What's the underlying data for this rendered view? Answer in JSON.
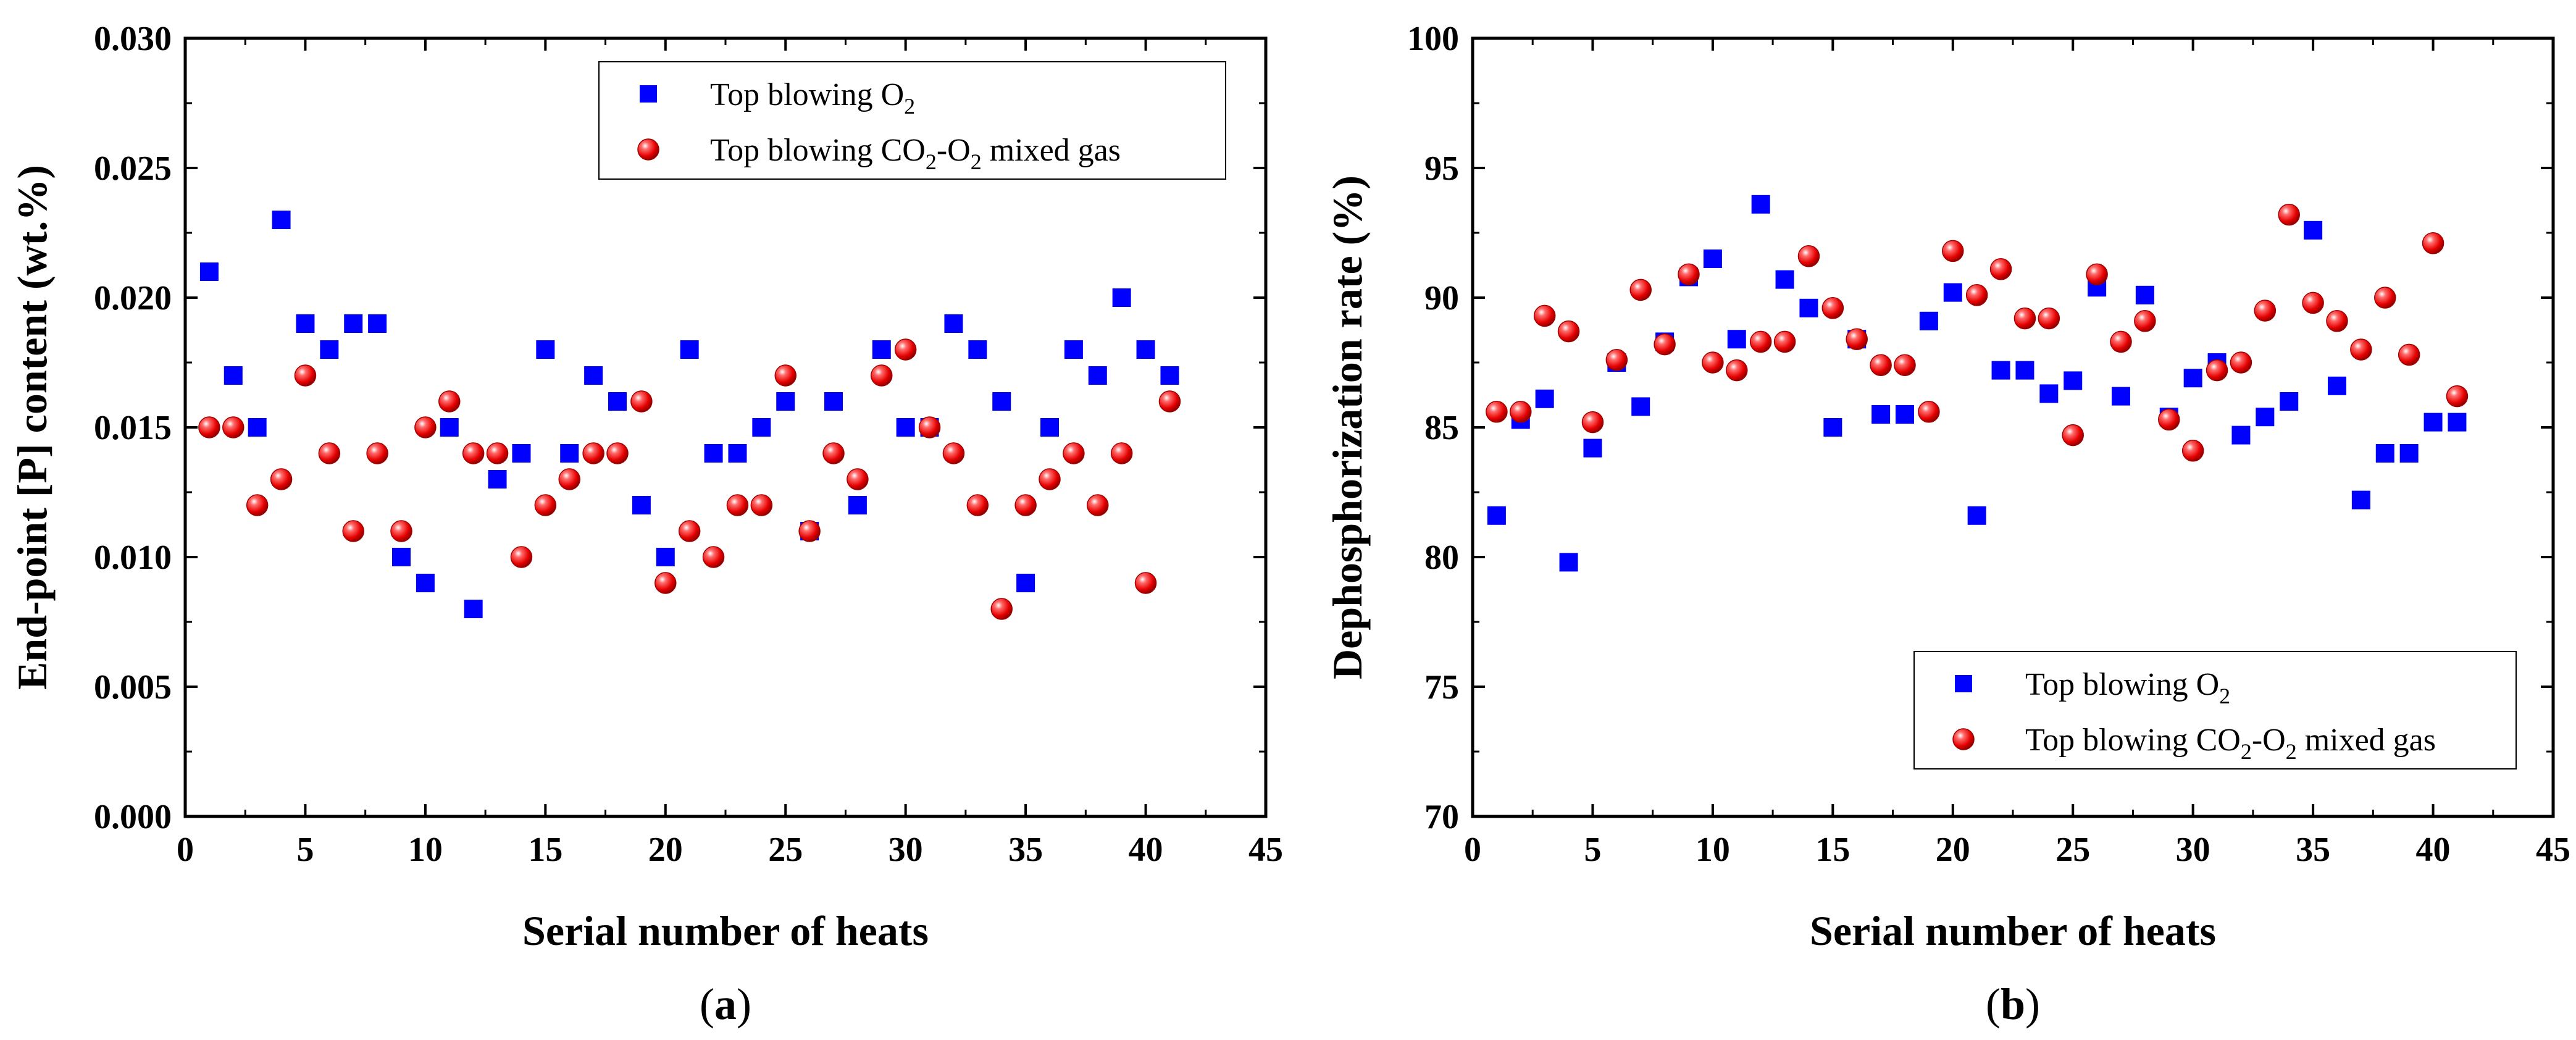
{
  "figure": {
    "charts": [
      {
        "panel_label": "(a)",
        "panel_label_parts": [
          "(",
          "a",
          ")"
        ]
      },
      {
        "panel_label": "(b)",
        "panel_label_parts": [
          "(",
          "b",
          ")"
        ]
      }
    ]
  },
  "colors": {
    "o2_series": "#0000ff",
    "co2_series": "#ff1a1a",
    "axis": "#000000"
  },
  "chart_data": [
    {
      "type": "scatter",
      "title": "",
      "xlabel": "Serial number of heats",
      "ylabel": "End-point [P] content (wt.%)",
      "xlim": [
        0,
        45
      ],
      "ylim": [
        0,
        0.03
      ],
      "xticks": [
        "0",
        "5",
        "10",
        "15",
        "20",
        "25",
        "30",
        "35",
        "40",
        "45"
      ],
      "yticks": [
        "0.000",
        "0.005",
        "0.010",
        "0.015",
        "0.020",
        "0.025",
        "0.030"
      ],
      "legend_position": "top-right",
      "series": [
        {
          "name": "Top blowing O2",
          "label_parts": [
            "Top blowing O",
            "2",
            ""
          ],
          "marker": "square",
          "x": [
            1,
            2,
            3,
            4,
            5,
            6,
            7,
            8,
            9,
            10,
            11,
            12,
            13,
            14,
            15,
            16,
            17,
            18,
            19,
            20,
            21,
            22,
            23,
            24,
            25,
            26,
            27,
            28,
            29,
            30,
            31,
            32,
            33,
            34,
            35,
            36,
            37,
            38,
            39,
            40,
            41
          ],
          "y": [
            0.021,
            0.017,
            0.015,
            0.023,
            0.019,
            0.018,
            0.019,
            0.019,
            0.01,
            0.009,
            0.015,
            0.008,
            0.013,
            0.014,
            0.018,
            0.014,
            0.017,
            0.016,
            0.012,
            0.01,
            0.018,
            0.014,
            0.014,
            0.015,
            0.016,
            0.011,
            0.016,
            0.012,
            0.018,
            0.015,
            0.015,
            0.019,
            0.018,
            0.016,
            0.009,
            0.015,
            0.018,
            0.017,
            0.02,
            0.018,
            0.017
          ]
        },
        {
          "name": "Top blowing CO2-O2 mixed gas",
          "label_parts": [
            "Top blowing CO",
            "2",
            "-O",
            "2",
            " mixed gas"
          ],
          "marker": "circle",
          "x": [
            1,
            2,
            3,
            4,
            5,
            6,
            7,
            8,
            9,
            10,
            11,
            12,
            13,
            14,
            15,
            16,
            17,
            18,
            19,
            20,
            21,
            22,
            23,
            24,
            25,
            26,
            27,
            28,
            29,
            30,
            31,
            32,
            33,
            34,
            35,
            36,
            37,
            38,
            39,
            40,
            41
          ],
          "y": [
            0.015,
            0.015,
            0.012,
            0.013,
            0.017,
            0.014,
            0.011,
            0.014,
            0.011,
            0.015,
            0.016,
            0.014,
            0.014,
            0.01,
            0.012,
            0.013,
            0.014,
            0.014,
            0.016,
            0.009,
            0.011,
            0.01,
            0.012,
            0.012,
            0.017,
            0.011,
            0.014,
            0.013,
            0.017,
            0.018,
            0.015,
            0.014,
            0.012,
            0.008,
            0.012,
            0.013,
            0.014,
            0.012,
            0.014,
            0.009,
            0.016
          ]
        }
      ]
    },
    {
      "type": "scatter",
      "title": "",
      "xlabel": "Serial number of heats",
      "ylabel": "Dephosphorization rate (%)",
      "xlim": [
        0,
        45
      ],
      "ylim": [
        70,
        100
      ],
      "xticks": [
        "0",
        "5",
        "10",
        "15",
        "20",
        "25",
        "30",
        "35",
        "40",
        "45"
      ],
      "yticks": [
        "70",
        "75",
        "80",
        "85",
        "90",
        "95",
        "100"
      ],
      "legend_position": "bottom-right",
      "series": [
        {
          "name": "Top blowing O2",
          "label_parts": [
            "Top blowing O",
            "2",
            ""
          ],
          "marker": "square",
          "x": [
            1,
            2,
            3,
            4,
            5,
            6,
            7,
            8,
            9,
            10,
            11,
            12,
            13,
            14,
            15,
            16,
            17,
            18,
            19,
            20,
            21,
            22,
            23,
            24,
            25,
            26,
            27,
            28,
            29,
            30,
            31,
            32,
            33,
            34,
            35,
            36,
            37,
            38,
            39,
            40,
            41
          ],
          "y": [
            81.6,
            85.3,
            86.1,
            79.8,
            84.2,
            87.5,
            85.8,
            88.3,
            90.8,
            91.5,
            88.4,
            93.6,
            90.7,
            89.6,
            85.0,
            88.4,
            85.5,
            85.5,
            89.1,
            90.2,
            81.6,
            87.2,
            87.2,
            86.3,
            86.8,
            90.4,
            86.2,
            90.1,
            85.4,
            86.9,
            87.5,
            84.7,
            85.4,
            86.0,
            92.6,
            86.6,
            82.2,
            84.0,
            84.0,
            85.2,
            85.2
          ]
        },
        {
          "name": "Top blowing CO2-O2 mixed gas",
          "label_parts": [
            "Top blowing CO",
            "2",
            "-O",
            "2",
            " mixed gas"
          ],
          "marker": "circle",
          "x": [
            1,
            2,
            3,
            4,
            5,
            6,
            7,
            8,
            9,
            10,
            11,
            12,
            13,
            14,
            15,
            16,
            17,
            18,
            19,
            20,
            21,
            22,
            23,
            24,
            25,
            26,
            27,
            28,
            29,
            30,
            31,
            32,
            33,
            34,
            35,
            36,
            37,
            38,
            39,
            40,
            41
          ],
          "y": [
            85.6,
            85.6,
            89.3,
            88.7,
            85.2,
            87.6,
            90.3,
            88.2,
            90.9,
            87.5,
            87.2,
            88.3,
            88.3,
            91.6,
            89.6,
            88.4,
            87.4,
            87.4,
            85.6,
            91.8,
            90.1,
            91.1,
            89.2,
            89.2,
            84.7,
            90.9,
            88.3,
            89.1,
            85.3,
            84.1,
            87.2,
            87.5,
            89.5,
            93.2,
            89.8,
            89.1,
            88.0,
            90.0,
            87.8,
            92.1,
            86.2
          ]
        }
      ]
    }
  ]
}
